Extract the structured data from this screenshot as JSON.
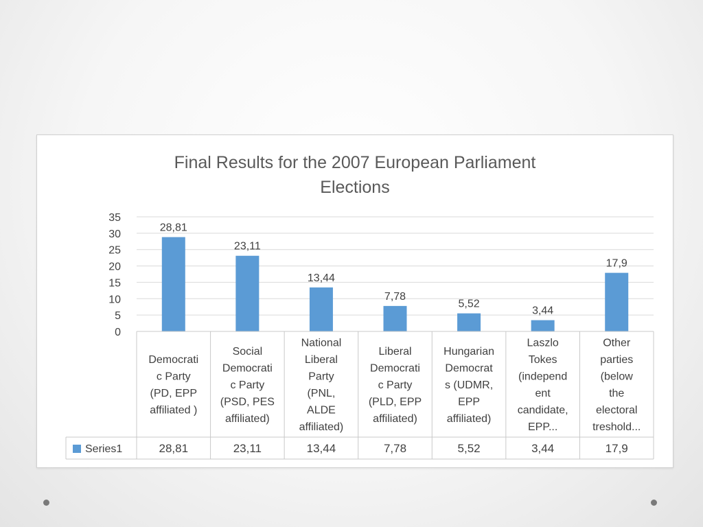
{
  "slide": {
    "decor_color": "#7a7a7a"
  },
  "chart_data": {
    "type": "bar",
    "title": "Final Results for the 2007 European Parliament Elections",
    "categories": [
      "Democratic Party (PD, EPP affiliated )",
      "Social Democratic Party (PSD, PES affiliated)",
      "National Liberal Party (PNL, ALDE affiliated)",
      "Liberal Democratic Party (PLD, EPP affiliated)",
      "Hungarian Democrats (UDMR, EPP affiliated)",
      "Laszlo Tokes (independent candidate, EPP...",
      "Other parties (below the electoral treshold..."
    ],
    "category_label_lines": [
      [
        "Democrati",
        "c Party",
        "(PD, EPP",
        "affiliated )"
      ],
      [
        "Social",
        "Democrati",
        "c Party",
        "(PSD, PES",
        "affiliated)"
      ],
      [
        "National",
        "Liberal",
        "Party",
        "(PNL,",
        "ALDE",
        "affiliated)"
      ],
      [
        "Liberal",
        "Democrati",
        "c Party",
        "(PLD, EPP",
        "affiliated)"
      ],
      [
        "Hungarian",
        "Democrat",
        "s (UDMR,",
        "EPP",
        "affiliated)"
      ],
      [
        "Laszlo",
        "Tokes",
        "(independ",
        "ent",
        "candidate,",
        "EPP..."
      ],
      [
        "Other",
        "parties",
        "(below",
        "the",
        "electoral",
        "treshold..."
      ]
    ],
    "series": [
      {
        "name": "Series1",
        "values": [
          28.81,
          23.11,
          13.44,
          7.78,
          5.52,
          3.44,
          17.9
        ],
        "labels": [
          "28,81",
          "23,11",
          "13,44",
          "7,78",
          "5,52",
          "3,44",
          "17,9"
        ],
        "color": "#5b9bd5"
      }
    ],
    "ylim": [
      0,
      35
    ],
    "yticks": [
      0,
      5,
      10,
      15,
      20,
      25,
      30,
      35
    ],
    "grid": true,
    "legend": "data-table-left",
    "data_table": true
  }
}
